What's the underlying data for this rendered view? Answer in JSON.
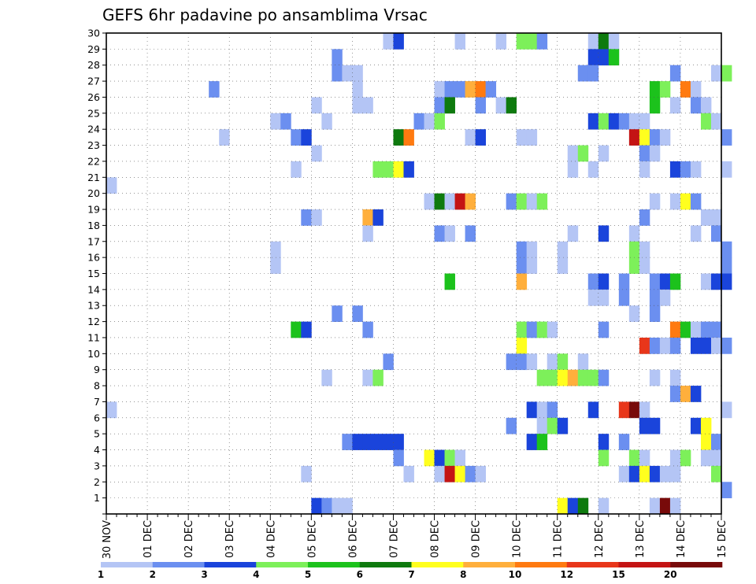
{
  "chart_data": {
    "type": "heatmap",
    "title": "GEFS 6hr padavine po ansamblima Vrsac",
    "xlabel": "",
    "ylabel": "",
    "x_tick_labels": [
      "30 NOV",
      "01 DEC",
      "02 DEC",
      "03 DEC",
      "04 DEC",
      "05 DEC",
      "06 DEC",
      "07 DEC",
      "08 DEC",
      "09 DEC",
      "10 DEC",
      "11 DEC",
      "12 DEC",
      "13 DEC",
      "14 DEC",
      "15 DEC"
    ],
    "y_tick_labels": [
      "1",
      "2",
      "3",
      "4",
      "5",
      "6",
      "7",
      "8",
      "9",
      "10",
      "11",
      "12",
      "13",
      "14",
      "15",
      "16",
      "17",
      "18",
      "19",
      "20",
      "21",
      "22",
      "23",
      "24",
      "25",
      "26",
      "27",
      "28",
      "29",
      "30"
    ],
    "time_steps_per_day": 4,
    "members": 30,
    "grid": true,
    "legend": {
      "placement": "bottom",
      "thresholds": [
        "1",
        "2",
        "3",
        "4",
        "5",
        "6",
        "7",
        "8",
        "10",
        "12",
        "15",
        "20"
      ],
      "colors": [
        "#b4c5f5",
        "#6b8ff0",
        "#1a44db",
        "#7df05a",
        "#1cc21c",
        "#0e7a0e",
        "#ffff1e",
        "#ffaf3c",
        "#ff7a10",
        "#e8361a",
        "#c41414",
        "#780a0a"
      ]
    },
    "cells": [
      [
        30,
        27,
        1
      ],
      [
        30,
        28,
        3
      ],
      [
        30,
        34,
        1
      ],
      [
        30,
        38,
        1
      ],
      [
        30,
        40,
        4
      ],
      [
        30,
        41,
        4
      ],
      [
        30,
        42,
        2
      ],
      [
        30,
        47,
        1
      ],
      [
        30,
        48,
        6
      ],
      [
        30,
        49,
        1
      ],
      [
        29,
        22,
        2
      ],
      [
        29,
        47,
        3
      ],
      [
        29,
        48,
        3
      ],
      [
        29,
        49,
        5
      ],
      [
        28,
        22,
        2
      ],
      [
        28,
        23,
        1
      ],
      [
        28,
        24,
        1
      ],
      [
        28,
        46,
        2
      ],
      [
        28,
        47,
        2
      ],
      [
        28,
        55,
        2
      ],
      [
        28,
        59,
        1
      ],
      [
        28,
        60,
        4
      ],
      [
        27,
        10,
        2
      ],
      [
        27,
        24,
        1
      ],
      [
        27,
        32,
        1
      ],
      [
        27,
        33,
        2
      ],
      [
        27,
        34,
        2
      ],
      [
        27,
        35,
        8
      ],
      [
        27,
        36,
        9
      ],
      [
        27,
        37,
        2
      ],
      [
        27,
        53,
        5
      ],
      [
        27,
        54,
        4
      ],
      [
        27,
        56,
        9
      ],
      [
        27,
        57,
        1
      ],
      [
        26,
        20,
        1
      ],
      [
        26,
        24,
        1
      ],
      [
        26,
        25,
        1
      ],
      [
        26,
        32,
        2
      ],
      [
        26,
        33,
        6
      ],
      [
        26,
        36,
        2
      ],
      [
        26,
        38,
        1
      ],
      [
        26,
        39,
        6
      ],
      [
        26,
        53,
        5
      ],
      [
        26,
        55,
        1
      ],
      [
        26,
        57,
        2
      ],
      [
        26,
        58,
        1
      ],
      [
        25,
        16,
        1
      ],
      [
        25,
        17,
        2
      ],
      [
        25,
        21,
        1
      ],
      [
        25,
        30,
        2
      ],
      [
        25,
        31,
        1
      ],
      [
        25,
        32,
        4
      ],
      [
        25,
        47,
        3
      ],
      [
        25,
        48,
        4
      ],
      [
        25,
        49,
        3
      ],
      [
        25,
        50,
        2
      ],
      [
        25,
        51,
        1
      ],
      [
        25,
        52,
        1
      ],
      [
        25,
        58,
        4
      ],
      [
        25,
        59,
        1
      ],
      [
        24,
        11,
        1
      ],
      [
        24,
        18,
        2
      ],
      [
        24,
        19,
        3
      ],
      [
        24,
        28,
        6
      ],
      [
        24,
        29,
        9
      ],
      [
        24,
        35,
        1
      ],
      [
        24,
        36,
        3
      ],
      [
        24,
        40,
        1
      ],
      [
        24,
        41,
        1
      ],
      [
        24,
        51,
        11
      ],
      [
        24,
        52,
        7
      ],
      [
        24,
        53,
        2
      ],
      [
        24,
        54,
        1
      ],
      [
        24,
        60,
        2
      ],
      [
        23,
        20,
        1
      ],
      [
        23,
        45,
        1
      ],
      [
        23,
        46,
        4
      ],
      [
        23,
        48,
        1
      ],
      [
        23,
        52,
        2
      ],
      [
        23,
        53,
        1
      ],
      [
        22,
        18,
        1
      ],
      [
        22,
        26,
        4
      ],
      [
        22,
        27,
        4
      ],
      [
        22,
        28,
        7
      ],
      [
        22,
        29,
        3
      ],
      [
        22,
        45,
        1
      ],
      [
        22,
        47,
        1
      ],
      [
        22,
        52,
        1
      ],
      [
        22,
        55,
        3
      ],
      [
        22,
        56,
        2
      ],
      [
        22,
        57,
        1
      ],
      [
        22,
        60,
        1
      ],
      [
        21,
        0,
        1
      ],
      [
        20,
        31,
        1
      ],
      [
        20,
        32,
        6
      ],
      [
        20,
        33,
        1
      ],
      [
        20,
        34,
        11
      ],
      [
        20,
        35,
        8
      ],
      [
        20,
        39,
        2
      ],
      [
        20,
        40,
        4
      ],
      [
        20,
        41,
        1
      ],
      [
        20,
        42,
        4
      ],
      [
        20,
        53,
        1
      ],
      [
        20,
        55,
        1
      ],
      [
        20,
        56,
        7
      ],
      [
        20,
        57,
        2
      ],
      [
        19,
        19,
        2
      ],
      [
        19,
        20,
        1
      ],
      [
        19,
        25,
        8
      ],
      [
        19,
        26,
        3
      ],
      [
        19,
        52,
        2
      ],
      [
        19,
        58,
        1
      ],
      [
        19,
        59,
        1
      ],
      [
        18,
        25,
        1
      ],
      [
        18,
        32,
        2
      ],
      [
        18,
        33,
        1
      ],
      [
        18,
        35,
        2
      ],
      [
        18,
        45,
        1
      ],
      [
        18,
        48,
        3
      ],
      [
        18,
        51,
        1
      ],
      [
        18,
        57,
        1
      ],
      [
        18,
        59,
        2
      ],
      [
        17,
        16,
        1
      ],
      [
        17,
        40,
        2
      ],
      [
        17,
        41,
        1
      ],
      [
        17,
        44,
        1
      ],
      [
        17,
        51,
        4
      ],
      [
        17,
        52,
        1
      ],
      [
        17,
        60,
        2
      ],
      [
        16,
        16,
        1
      ],
      [
        16,
        40,
        2
      ],
      [
        16,
        41,
        1
      ],
      [
        16,
        44,
        1
      ],
      [
        16,
        51,
        4
      ],
      [
        16,
        52,
        1
      ],
      [
        16,
        60,
        2
      ],
      [
        15,
        33,
        5
      ],
      [
        15,
        40,
        8
      ],
      [
        15,
        47,
        2
      ],
      [
        15,
        48,
        3
      ],
      [
        15,
        50,
        2
      ],
      [
        15,
        53,
        2
      ],
      [
        15,
        54,
        3
      ],
      [
        15,
        55,
        5
      ],
      [
        15,
        58,
        1
      ],
      [
        15,
        59,
        3
      ],
      [
        15,
        60,
        3
      ],
      [
        14,
        47,
        1
      ],
      [
        14,
        48,
        1
      ],
      [
        14,
        50,
        2
      ],
      [
        14,
        53,
        2
      ],
      [
        14,
        54,
        1
      ],
      [
        13,
        22,
        2
      ],
      [
        13,
        24,
        2
      ],
      [
        13,
        51,
        1
      ],
      [
        13,
        53,
        2
      ],
      [
        12,
        18,
        5
      ],
      [
        12,
        19,
        3
      ],
      [
        12,
        25,
        2
      ],
      [
        12,
        40,
        4
      ],
      [
        12,
        41,
        2
      ],
      [
        12,
        42,
        4
      ],
      [
        12,
        43,
        1
      ],
      [
        12,
        48,
        2
      ],
      [
        12,
        55,
        9
      ],
      [
        12,
        56,
        5
      ],
      [
        12,
        57,
        1
      ],
      [
        12,
        58,
        2
      ],
      [
        12,
        59,
        2
      ],
      [
        11,
        40,
        7
      ],
      [
        11,
        52,
        10
      ],
      [
        11,
        53,
        2
      ],
      [
        11,
        54,
        1
      ],
      [
        11,
        55,
        2
      ],
      [
        11,
        57,
        3
      ],
      [
        11,
        58,
        3
      ],
      [
        11,
        59,
        1
      ],
      [
        11,
        60,
        2
      ],
      [
        10,
        27,
        2
      ],
      [
        10,
        39,
        2
      ],
      [
        10,
        40,
        2
      ],
      [
        10,
        41,
        1
      ],
      [
        10,
        43,
        1
      ],
      [
        10,
        44,
        4
      ],
      [
        10,
        46,
        1
      ],
      [
        9,
        21,
        1
      ],
      [
        9,
        25,
        1
      ],
      [
        9,
        26,
        4
      ],
      [
        9,
        42,
        4
      ],
      [
        9,
        43,
        4
      ],
      [
        9,
        44,
        7
      ],
      [
        9,
        45,
        8
      ],
      [
        9,
        46,
        4
      ],
      [
        9,
        47,
        4
      ],
      [
        9,
        48,
        2
      ],
      [
        9,
        53,
        1
      ],
      [
        9,
        55,
        1
      ],
      [
        8,
        55,
        2
      ],
      [
        8,
        56,
        8
      ],
      [
        8,
        57,
        3
      ],
      [
        7,
        0,
        1
      ],
      [
        7,
        41,
        3
      ],
      [
        7,
        42,
        1
      ],
      [
        7,
        43,
        2
      ],
      [
        7,
        47,
        3
      ],
      [
        7,
        50,
        10
      ],
      [
        7,
        51,
        12
      ],
      [
        7,
        52,
        1
      ],
      [
        7,
        60,
        1
      ],
      [
        6,
        39,
        2
      ],
      [
        6,
        42,
        1
      ],
      [
        6,
        43,
        4
      ],
      [
        6,
        44,
        3
      ],
      [
        6,
        52,
        3
      ],
      [
        6,
        53,
        3
      ],
      [
        6,
        57,
        3
      ],
      [
        6,
        58,
        7
      ],
      [
        5,
        23,
        2
      ],
      [
        5,
        24,
        3
      ],
      [
        5,
        25,
        3
      ],
      [
        5,
        26,
        3
      ],
      [
        5,
        27,
        3
      ],
      [
        5,
        28,
        3
      ],
      [
        5,
        41,
        3
      ],
      [
        5,
        42,
        5
      ],
      [
        5,
        48,
        3
      ],
      [
        5,
        50,
        2
      ],
      [
        5,
        58,
        7
      ],
      [
        5,
        59,
        2
      ],
      [
        4,
        28,
        2
      ],
      [
        4,
        31,
        7
      ],
      [
        4,
        32,
        3
      ],
      [
        4,
        33,
        4
      ],
      [
        4,
        34,
        1
      ],
      [
        4,
        48,
        4
      ],
      [
        4,
        51,
        4
      ],
      [
        4,
        52,
        1
      ],
      [
        4,
        55,
        1
      ],
      [
        4,
        56,
        4
      ],
      [
        4,
        58,
        1
      ],
      [
        4,
        59,
        1
      ],
      [
        3,
        19,
        1
      ],
      [
        3,
        29,
        1
      ],
      [
        3,
        32,
        1
      ],
      [
        3,
        33,
        11
      ],
      [
        3,
        34,
        7
      ],
      [
        3,
        35,
        2
      ],
      [
        3,
        36,
        1
      ],
      [
        3,
        50,
        1
      ],
      [
        3,
        51,
        3
      ],
      [
        3,
        52,
        7
      ],
      [
        3,
        53,
        3
      ],
      [
        3,
        54,
        1
      ],
      [
        3,
        55,
        1
      ],
      [
        3,
        59,
        4
      ],
      [
        2,
        60,
        2
      ],
      [
        1,
        20,
        3
      ],
      [
        1,
        21,
        2
      ],
      [
        1,
        22,
        1
      ],
      [
        1,
        23,
        1
      ],
      [
        1,
        44,
        7
      ],
      [
        1,
        45,
        3
      ],
      [
        1,
        46,
        6
      ],
      [
        1,
        48,
        1
      ],
      [
        1,
        53,
        1
      ],
      [
        1,
        54,
        12
      ],
      [
        1,
        55,
        1
      ]
    ]
  }
}
